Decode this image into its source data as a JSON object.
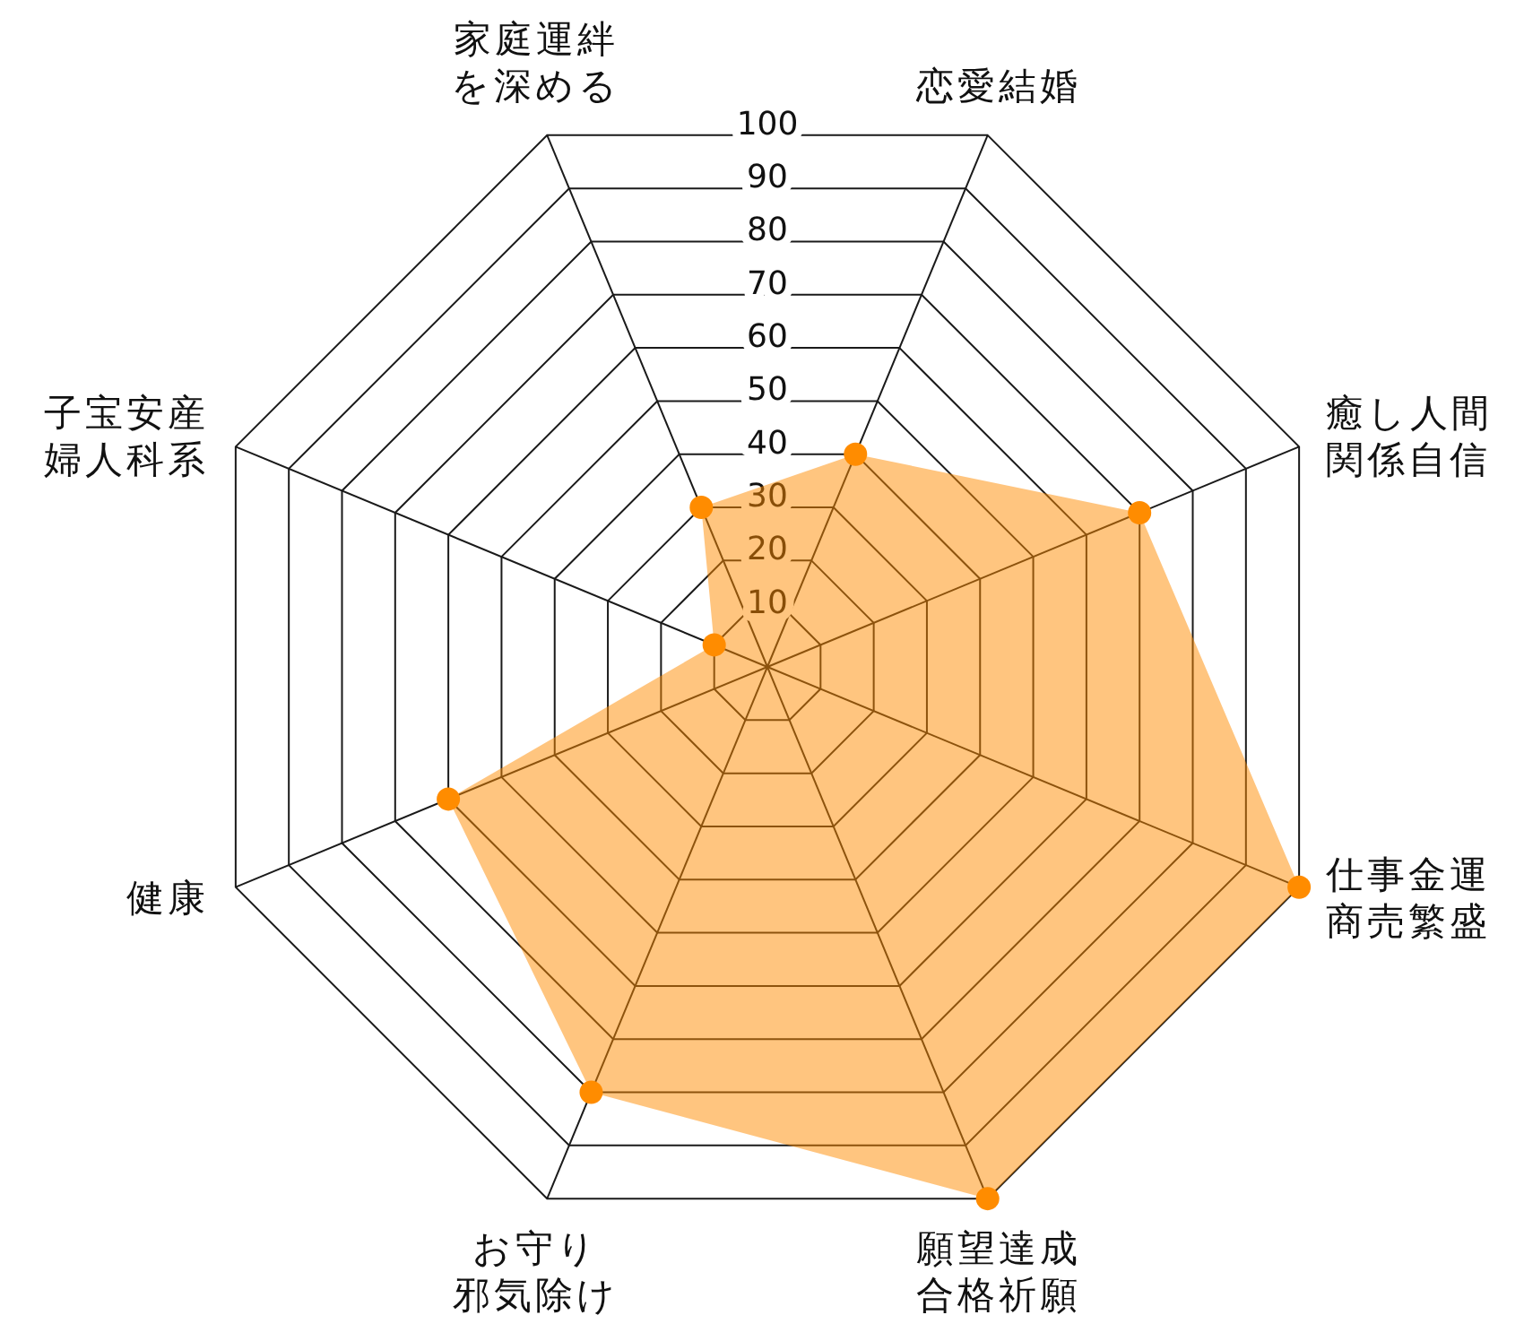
{
  "chart_data": {
    "type": "radar",
    "categories": [
      "恋愛結婚",
      "癒し人間関係自信",
      "仕事金運商売繁盛",
      "願望達成合格祈願",
      "お守り邪気除け",
      "健康",
      "子宝安産婦人科系",
      "家庭運絆を深める"
    ],
    "series": [
      {
        "color": "#ff8c00",
        "values": [
          40,
          70,
          100,
          100,
          80,
          60,
          10,
          30
        ]
      }
    ],
    "ylim": [
      0,
      100
    ],
    "yticks": [
      10,
      20,
      30,
      40,
      50,
      60,
      70,
      80,
      90,
      100
    ],
    "grid": true,
    "marker": "circle"
  }
}
